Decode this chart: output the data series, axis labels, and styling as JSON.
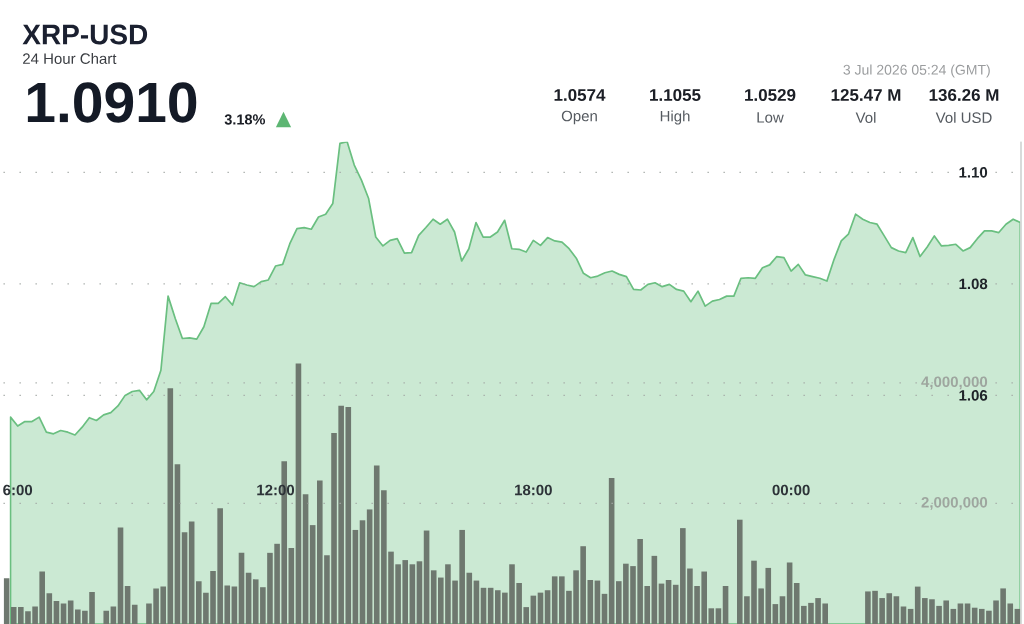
{
  "chart_data": {
    "type": "area",
    "title": "XRP-USD",
    "subtitle": "24 Hour Chart",
    "annotations": [
      "1.0910",
      "3.18%",
      "▲",
      "1.0574",
      "Open",
      "1.1055",
      "High",
      "1.0529",
      "Low",
      "125.47 M",
      "Vol",
      "136.26 M",
      "Vol USD",
      "3 Jul 2026 05:24 (GMT)"
    ],
    "xlim": [
      5.67,
      29.35
    ],
    "xticks": [
      {
        "value": 6,
        "label": "6:00"
      },
      {
        "value": 12,
        "label": "12:00"
      },
      {
        "value": 18,
        "label": "18:00"
      },
      {
        "value": 24,
        "label": "00:00"
      }
    ],
    "ylim": [
      1.019,
      1.1055
    ],
    "yticks": [
      1.06,
      1.08,
      {
        "value": 1.1,
        "label": "1.10"
      }
    ],
    "y2lim": [
      0,
      8000000
    ],
    "y2ticks": [
      {
        "value": 2000000,
        "label": "2,000,000"
      },
      {
        "value": 4000000,
        "label": "4,000,000"
      }
    ],
    "grid": "y",
    "series": [
      {
        "color": "#6abf80",
        "x": [
          5.833,
          6,
          6.167,
          6.333,
          6.5,
          6.667,
          6.833,
          7,
          7.167,
          7.333,
          7.5,
          7.667,
          7.833,
          8,
          8.167,
          8.333,
          8.5,
          8.667,
          8.833,
          9,
          9.167,
          9.333,
          9.5,
          9.667,
          9.833,
          10,
          10.167,
          10.333,
          10.5,
          10.667,
          10.833,
          11,
          11.167,
          11.333,
          11.5,
          11.667,
          11.833,
          12,
          12.167,
          12.333,
          12.5,
          12.667,
          12.833,
          13,
          13.167,
          13.333,
          13.5,
          13.667,
          13.833,
          14,
          14.167,
          14.333,
          14.5,
          14.667,
          14.833,
          15,
          15.167,
          15.333,
          15.5,
          15.667,
          15.833,
          16,
          16.167,
          16.333,
          16.5,
          16.667,
          16.833,
          17,
          17.167,
          17.333,
          17.5,
          17.667,
          17.833,
          18,
          18.167,
          18.333,
          18.5,
          18.667,
          18.833,
          19,
          19.167,
          19.333,
          19.5,
          19.667,
          19.833,
          20,
          20.167,
          20.333,
          20.5,
          20.667,
          20.833,
          21,
          21.167,
          21.333,
          21.5,
          21.667,
          21.833,
          22,
          22.167,
          22.333,
          22.5,
          22.667,
          22.833,
          23,
          23.167,
          23.333,
          23.5,
          23.667,
          23.833,
          24,
          24.167,
          24.333,
          24.5,
          24.667,
          24.833,
          25,
          25.167,
          25.333,
          25.5,
          25.667,
          25.833,
          26,
          26.167,
          26.333,
          26.5,
          26.667,
          26.833,
          27,
          27.167,
          27.333,
          27.5,
          27.667,
          27.833,
          28,
          28.167,
          28.333,
          28.5,
          28.667,
          28.833,
          29,
          29.167,
          29.333
        ],
        "values": [
          1.0561,
          1.0545,
          1.0553,
          1.0553,
          1.0561,
          1.0534,
          1.0531,
          1.0537,
          1.0534,
          1.0529,
          1.0543,
          1.056,
          1.0555,
          1.0565,
          1.0569,
          1.0581,
          1.06,
          1.0607,
          1.0609,
          1.0592,
          1.0607,
          1.0645,
          1.0778,
          1.0738,
          1.0702,
          1.0703,
          1.0701,
          1.0723,
          1.0765,
          1.0765,
          1.0777,
          1.0762,
          1.0802,
          1.0798,
          1.0795,
          1.0804,
          1.0807,
          1.0832,
          1.0835,
          1.0872,
          1.0899,
          1.0901,
          1.0898,
          1.092,
          1.0925,
          1.0944,
          1.1052,
          1.1055,
          1.1013,
          1.0986,
          1.0953,
          1.0884,
          1.0868,
          1.0878,
          1.0881,
          1.0855,
          1.0856,
          1.0887,
          1.0901,
          1.0916,
          1.0907,
          1.0916,
          1.0893,
          1.0841,
          1.0863,
          1.091,
          1.0884,
          1.0884,
          1.0893,
          1.0914,
          1.0863,
          1.0862,
          1.0857,
          1.0878,
          1.0869,
          1.0883,
          1.0877,
          1.0875,
          1.0863,
          1.0846,
          1.0819,
          1.0811,
          1.0814,
          1.082,
          1.0823,
          1.0817,
          1.0813,
          1.079,
          1.0789,
          1.0799,
          1.0802,
          1.0795,
          1.0799,
          1.079,
          1.0787,
          1.0768,
          1.0787,
          1.076,
          1.0769,
          1.0772,
          1.0778,
          1.0778,
          1.081,
          1.0811,
          1.081,
          1.0829,
          1.0834,
          1.0849,
          1.0847,
          1.0823,
          1.0835,
          1.0816,
          1.0813,
          1.081,
          1.0805,
          1.0844,
          1.0877,
          1.0889,
          1.0925,
          1.0916,
          1.091,
          1.0907,
          1.0886,
          1.0865,
          1.0859,
          1.0856,
          1.0883,
          1.0849,
          1.0866,
          1.0886,
          1.0868,
          1.0869,
          1.0871,
          1.0859,
          1.0865,
          1.0881,
          1.0895,
          1.0895,
          1.0892,
          1.0907,
          1.0916,
          1.091
        ]
      },
      {
        "type": "bar",
        "axis": "y2",
        "color": "#6e786f",
        "x": [
          5.742,
          5.908,
          6.073,
          6.239,
          6.405,
          6.57,
          6.736,
          6.902,
          7.067,
          7.233,
          7.399,
          7.564,
          7.73,
          7.896,
          8.061,
          8.227,
          8.393,
          8.558,
          8.724,
          8.89,
          9.055,
          9.221,
          9.387,
          9.552,
          9.718,
          9.884,
          10.049,
          10.215,
          10.38,
          10.546,
          10.712,
          10.877,
          11.043,
          11.209,
          11.374,
          11.54,
          11.706,
          11.871,
          12.037,
          12.203,
          12.368,
          12.534,
          12.7,
          12.865,
          13.031,
          13.197,
          13.362,
          13.528,
          13.694,
          13.859,
          14.025,
          14.191,
          14.356,
          14.522,
          14.688,
          14.853,
          15.019,
          15.185,
          15.35,
          15.516,
          15.682,
          15.847,
          16.013,
          16.179,
          16.344,
          16.51,
          16.676,
          16.841,
          17.007,
          17.173,
          17.338,
          17.504,
          17.67,
          17.835,
          18.001,
          18.167,
          18.332,
          18.498,
          18.664,
          18.829,
          18.995,
          19.16,
          19.326,
          19.492,
          19.657,
          19.823,
          19.989,
          20.154,
          20.32,
          20.486,
          20.651,
          20.817,
          20.983,
          21.148,
          21.314,
          21.48,
          21.645,
          21.811,
          21.977,
          22.142,
          22.308,
          22.474,
          22.639,
          22.805,
          22.971,
          23.136,
          23.302,
          23.468,
          23.633,
          23.799,
          23.965,
          24.13,
          24.296,
          24.462,
          24.627,
          24.793,
          24.959,
          25.124,
          25.29,
          25.456,
          25.621,
          25.787,
          25.953,
          26.118,
          26.284,
          26.45,
          26.615,
          26.781,
          26.946,
          27.112,
          27.278,
          27.443,
          27.609,
          27.775,
          27.94,
          28.106,
          28.272,
          28.437,
          28.603,
          28.769,
          28.934,
          29.1,
          29.266
        ],
        "values": [
          760000,
          280000,
          280000,
          210000,
          290000,
          870000,
          510000,
          380000,
          340000,
          390000,
          240000,
          220000,
          530000,
          null,
          220000,
          290000,
          1600000,
          630000,
          320000,
          null,
          340000,
          590000,
          620000,
          3910000,
          2650000,
          1520000,
          1700000,
          710000,
          520000,
          880000,
          1920000,
          640000,
          620000,
          1180000,
          850000,
          740000,
          610000,
          1180000,
          1330000,
          2700000,
          1260000,
          4320000,
          2150000,
          1640000,
          2380000,
          1140000,
          3170000,
          3620000,
          3600000,
          1560000,
          1720000,
          1900000,
          2630000,
          2220000,
          1200000,
          990000,
          1060000,
          990000,
          1040000,
          1550000,
          890000,
          770000,
          990000,
          720000,
          1560000,
          850000,
          720000,
          600000,
          600000,
          560000,
          520000,
          990000,
          680000,
          280000,
          470000,
          520000,
          560000,
          790000,
          790000,
          550000,
          890000,
          1290000,
          730000,
          720000,
          500000,
          2420000,
          710000,
          1000000,
          960000,
          1410000,
          630000,
          1130000,
          670000,
          730000,
          650000,
          1590000,
          920000,
          630000,
          870000,
          260000,
          260000,
          630000,
          null,
          1730000,
          460000,
          1050000,
          590000,
          930000,
          330000,
          460000,
          1020000,
          680000,
          300000,
          350000,
          430000,
          340000,
          null,
          null,
          null,
          null,
          null,
          540000,
          550000,
          430000,
          510000,
          460000,
          290000,
          250000,
          620000,
          430000,
          410000,
          300000,
          390000,
          250000,
          340000,
          340000,
          270000,
          250000,
          220000,
          390000,
          590000,
          340000,
          250000
        ]
      }
    ]
  }
}
